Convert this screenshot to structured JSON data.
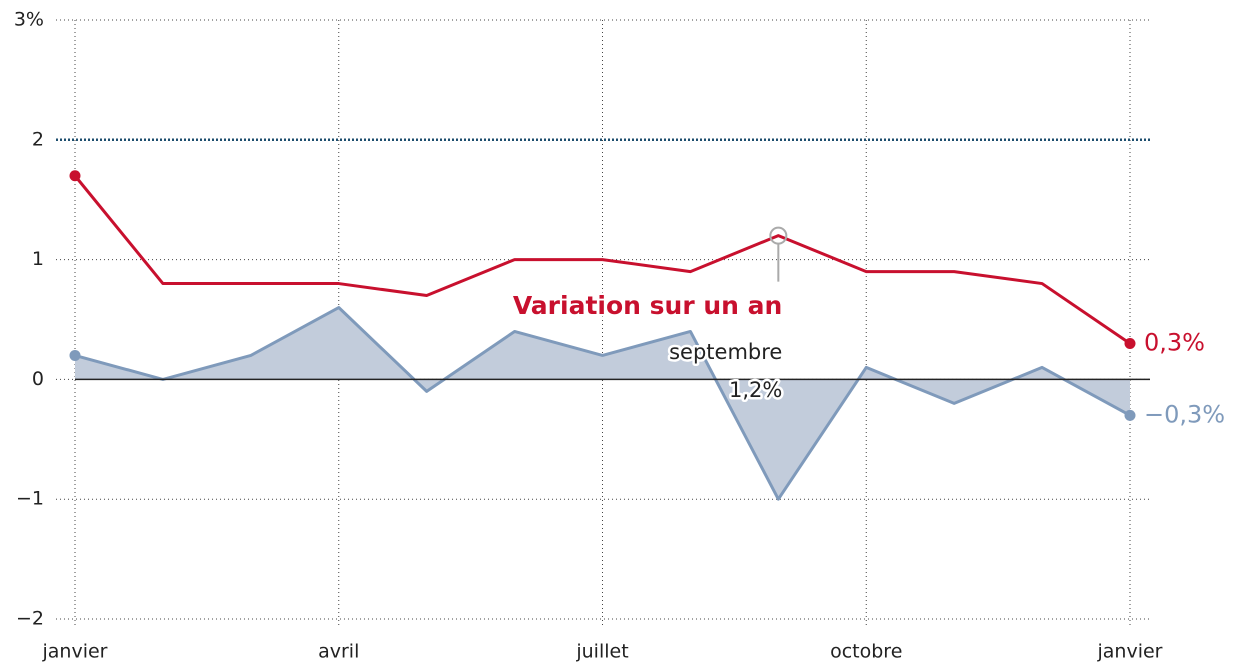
{
  "chart_data": {
    "type": "line",
    "categories": [
      "janvier",
      null,
      null,
      "avril",
      null,
      null,
      "juillet",
      null,
      null,
      "octobre",
      null,
      null,
      "janvier"
    ],
    "series": [
      {
        "name": "Variation sur un an",
        "color": "#c8102e",
        "values": [
          1.7,
          0.8,
          0.8,
          0.8,
          0.7,
          1.0,
          1.0,
          0.9,
          1.2,
          0.9,
          0.9,
          0.8,
          0.3
        ],
        "value_labels": [
          null,
          null,
          null,
          null,
          null,
          null,
          null,
          null,
          null,
          null,
          null,
          null,
          "0,3%"
        ]
      },
      {
        "color": "#7f9abb",
        "fill": "#c2ccdb",
        "area": true,
        "values": [
          0.2,
          0.0,
          0.2,
          0.6,
          -0.1,
          0.4,
          0.2,
          0.4,
          -1.0,
          0.1,
          -0.2,
          0.1,
          -0.3
        ],
        "value_labels": [
          null,
          null,
          null,
          null,
          null,
          null,
          null,
          null,
          null,
          null,
          null,
          null,
          "−0,3%"
        ]
      }
    ],
    "ylim": [
      -2,
      3
    ],
    "yticks": [
      {
        "value": -2,
        "label": "−2"
      },
      {
        "value": -1,
        "label": "−1"
      },
      0,
      1,
      2,
      {
        "value": 3,
        "label": "3%"
      }
    ],
    "grid": true,
    "reference_line": {
      "value": 2,
      "color": "#1d4e6e"
    },
    "tooltip": {
      "series": 0,
      "index": 8,
      "label": "septembre",
      "value_label": "1,2%"
    }
  }
}
